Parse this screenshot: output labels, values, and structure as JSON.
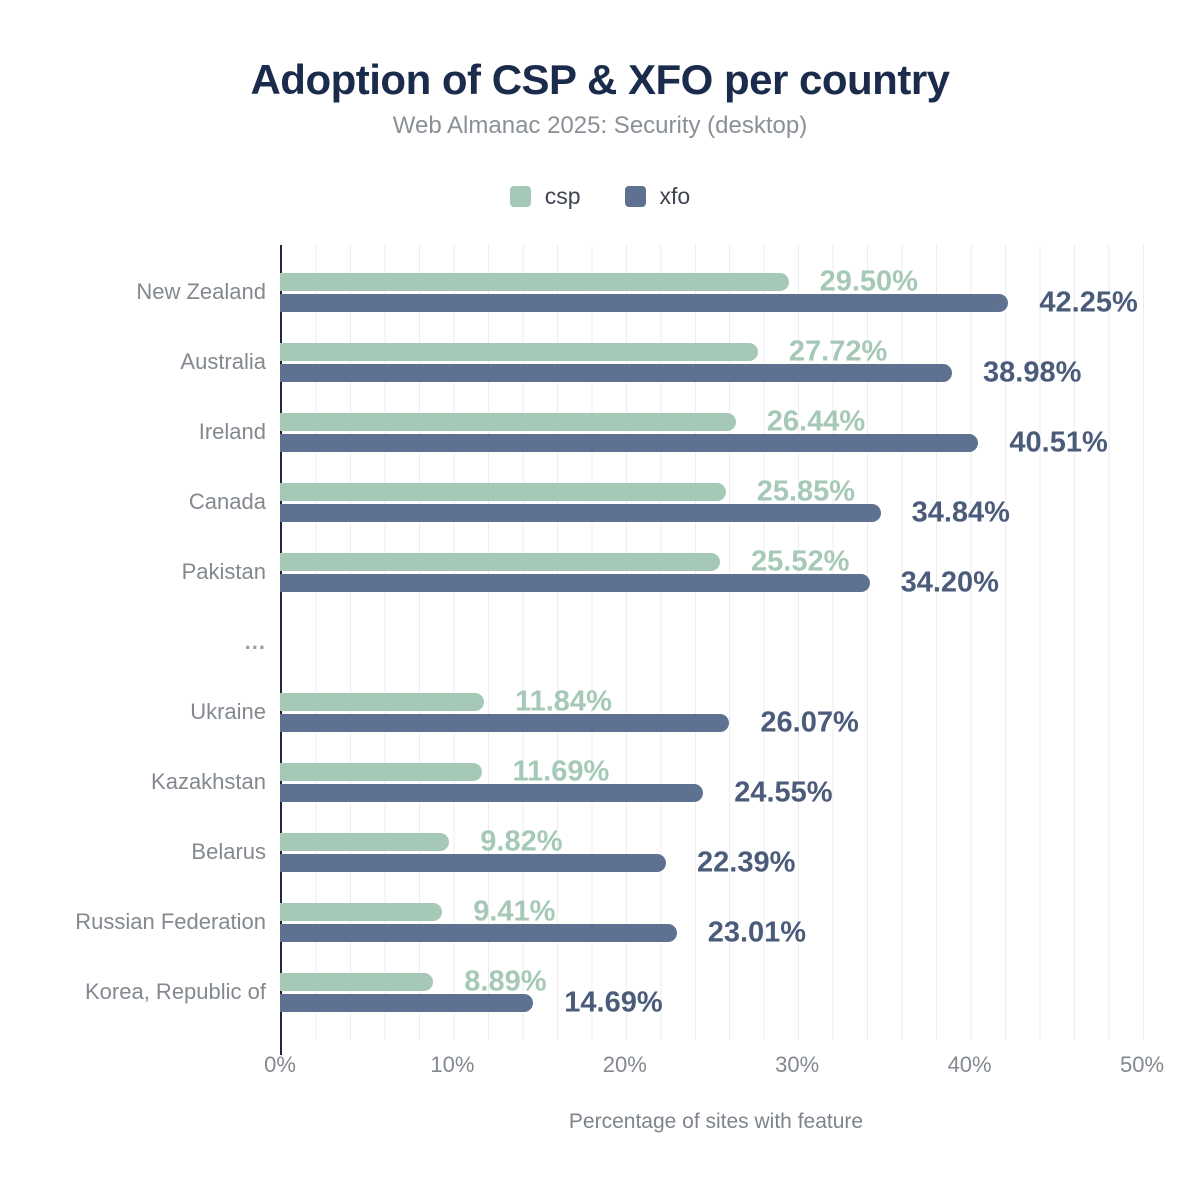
{
  "header": {
    "title": "Adoption of CSP & XFO per country",
    "subtitle": "Web Almanac 2025: Security (desktop)"
  },
  "legend": [
    {
      "label": "csp",
      "color": "#a5c9b6"
    },
    {
      "label": "xfo",
      "color": "#5f7190"
    }
  ],
  "colors": {
    "background": "#ffffff",
    "title": "#1b2b4b",
    "subtitle": "#8a9097",
    "category_labels": "#83898f",
    "axis_line": "#1c2940",
    "gridlines": "#ededf0",
    "csp": "#a5c9b6",
    "xfo": "#5f7190",
    "xfo_value_label": "#4b5b7a"
  },
  "chart_data": {
    "type": "bar",
    "orientation": "horizontal",
    "title": "Adoption of CSP & XFO per country",
    "subtitle": "Web Almanac 2025: Security (desktop)",
    "xlabel": "Percentage of sites with feature",
    "ylabel": "",
    "categories": [
      "New Zealand",
      "Australia",
      "Ireland",
      "Canada",
      "Pakistan",
      "...",
      "Ukraine",
      "Kazakhstan",
      "Belarus",
      "Russian Federation",
      "Korea, Republic of"
    ],
    "series": [
      {
        "name": "csp",
        "color": "#a5c9b6",
        "label_color": "#a5c9b6",
        "values": [
          29.5,
          27.72,
          26.44,
          25.85,
          25.52,
          null,
          11.84,
          11.69,
          9.82,
          9.41,
          8.89
        ]
      },
      {
        "name": "xfo",
        "color": "#5f7190",
        "label_color": "#4b5b7a",
        "values": [
          42.25,
          38.98,
          40.51,
          34.84,
          34.2,
          null,
          26.07,
          24.55,
          22.39,
          23.01,
          14.69
        ]
      }
    ],
    "value_label_format": "0.00%",
    "x_ticks": [
      "0%",
      "10%",
      "20%",
      "30%",
      "40%",
      "50%"
    ],
    "x_tick_values": [
      0,
      10,
      20,
      30,
      40,
      50
    ],
    "xlim": [
      0,
      50.7
    ],
    "grid": "vertical minor gridlines every 2%",
    "legend_position": "top center"
  }
}
